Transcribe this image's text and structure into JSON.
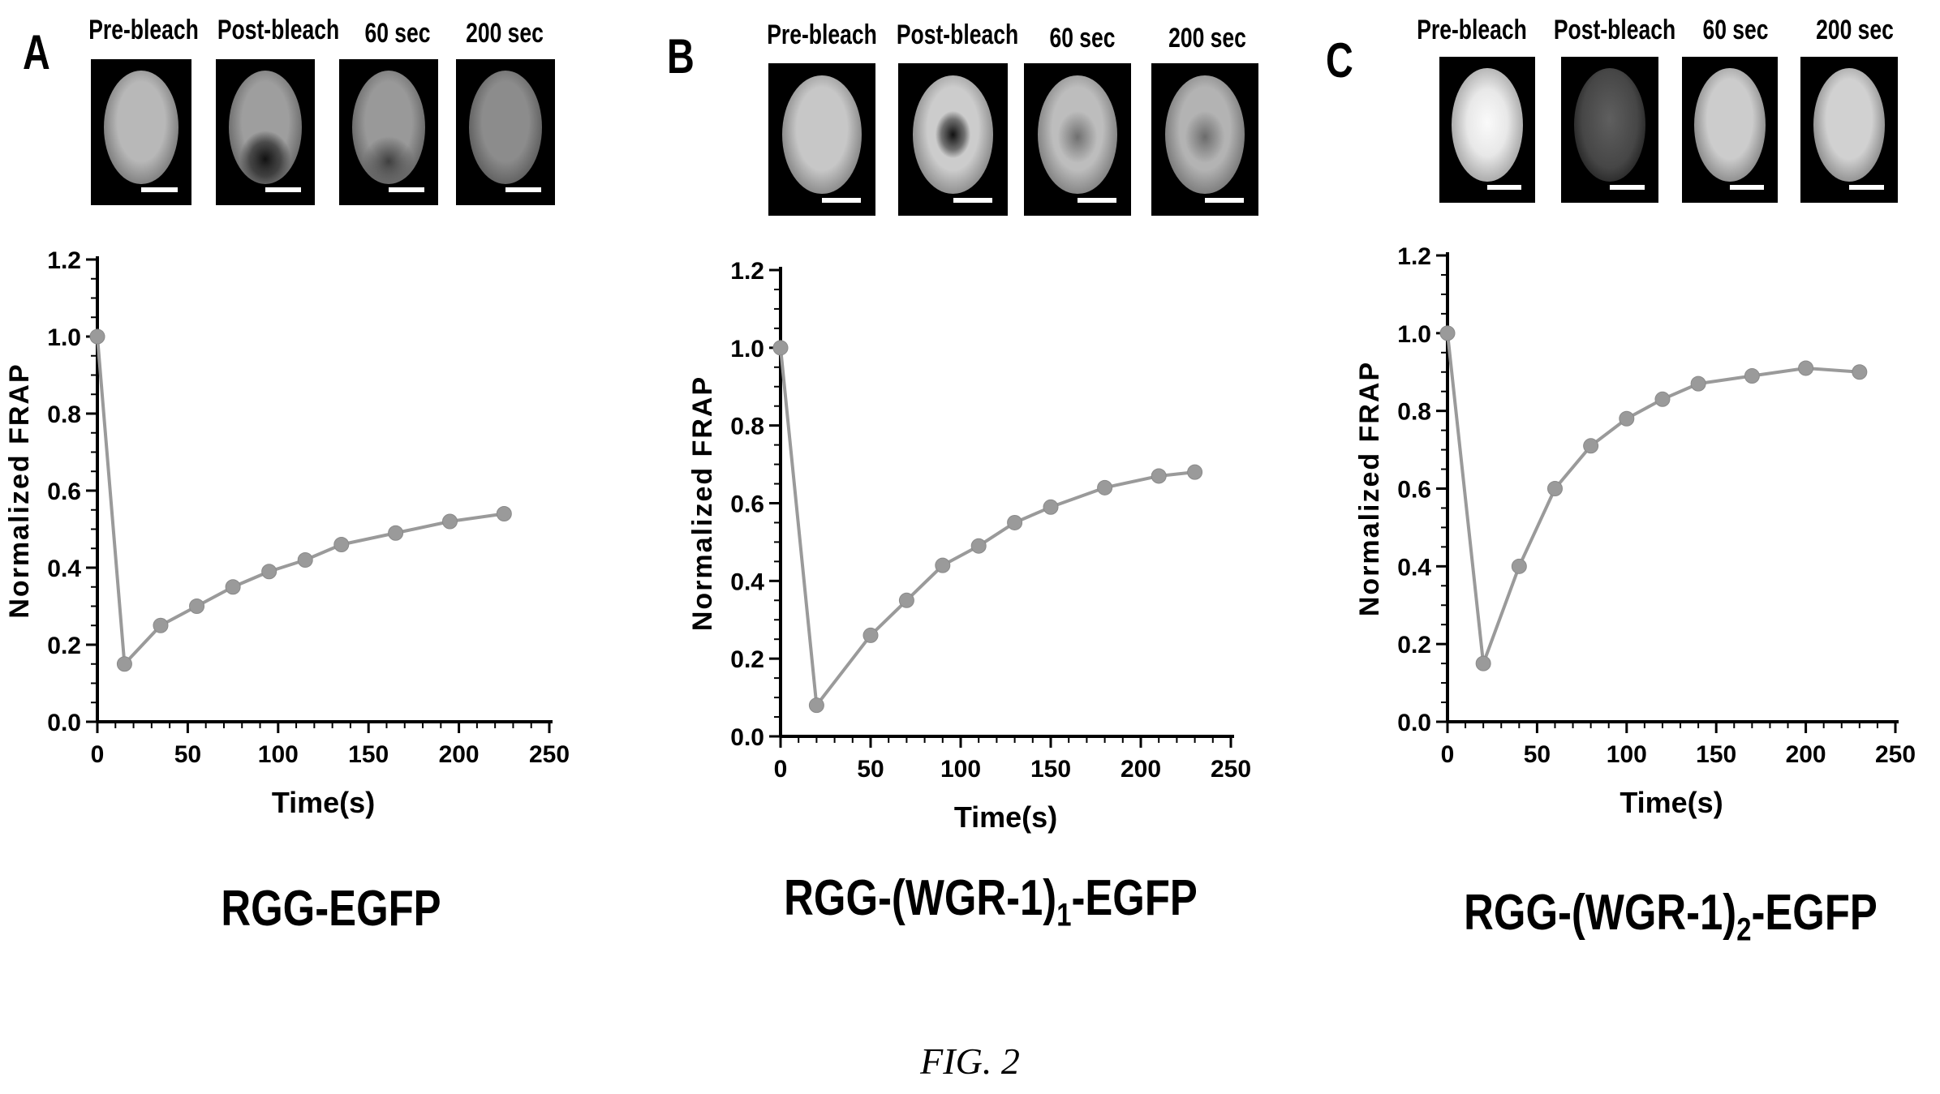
{
  "figure_caption": "FIG. 2",
  "image_labels": [
    "Pre-bleach",
    "Post-bleach",
    "60 sec",
    "200 sec"
  ],
  "panels": [
    {
      "letter": "A",
      "construct": {
        "main": "RGG-EGFP",
        "sub": "",
        "tail": ""
      },
      "micrographs": [
        {
          "label": "Pre-bleach",
          "state": "intact",
          "brightness": 0.72
        },
        {
          "label": "Post-bleach",
          "state": "bleached-bottom",
          "brightness": 0.62
        },
        {
          "label": "60 sec",
          "state": "recovering",
          "brightness": 0.6
        },
        {
          "label": "200 sec",
          "state": "recovered",
          "brightness": 0.55
        }
      ]
    },
    {
      "letter": "B",
      "construct": {
        "main": "RGG-(WGR-1)",
        "sub": "1",
        "tail": "-EGFP"
      },
      "micrographs": [
        {
          "label": "Pre-bleach",
          "state": "intact",
          "brightness": 0.78
        },
        {
          "label": "Post-bleach",
          "state": "bleached-center",
          "brightness": 0.8
        },
        {
          "label": "60 sec",
          "state": "recovering-center",
          "brightness": 0.74
        },
        {
          "label": "200 sec",
          "state": "recovered-center",
          "brightness": 0.7
        }
      ]
    },
    {
      "letter": "C",
      "construct": {
        "main": "RGG-(WGR-1)",
        "sub": "2",
        "tail": "-EGFP"
      },
      "micrographs": [
        {
          "label": "Pre-bleach",
          "state": "bright",
          "brightness": 0.95
        },
        {
          "label": "Post-bleach",
          "state": "dim",
          "brightness": 0.35
        },
        {
          "label": "60 sec",
          "state": "recovered",
          "brightness": 0.8
        },
        {
          "label": "200 sec",
          "state": "recovered",
          "brightness": 0.82
        }
      ]
    }
  ],
  "chart_data": [
    {
      "type": "line",
      "xlabel": "Time(s)",
      "ylabel": "Normalized FRAP",
      "xlim": [
        0,
        250
      ],
      "ylim": [
        0,
        1.2
      ],
      "xticks": [
        0,
        50,
        100,
        150,
        200,
        250
      ],
      "yticks": [
        0.0,
        0.2,
        0.4,
        0.6,
        0.8,
        1.0,
        1.2
      ],
      "grid": false,
      "series_color": "#9a9a9a",
      "x": [
        0,
        15,
        35,
        55,
        75,
        95,
        115,
        135,
        165,
        195,
        225
      ],
      "y": [
        1.0,
        0.15,
        0.25,
        0.3,
        0.35,
        0.39,
        0.42,
        0.46,
        0.49,
        0.52,
        0.54
      ]
    },
    {
      "type": "line",
      "xlabel": "Time(s)",
      "ylabel": "Normalized FRAP",
      "xlim": [
        0,
        250
      ],
      "ylim": [
        0,
        1.2
      ],
      "xticks": [
        0,
        50,
        100,
        150,
        200,
        250
      ],
      "yticks": [
        0.0,
        0.2,
        0.4,
        0.6,
        0.8,
        1.0,
        1.2
      ],
      "grid": false,
      "series_color": "#9a9a9a",
      "x": [
        0,
        20,
        50,
        70,
        90,
        110,
        130,
        150,
        180,
        210,
        230
      ],
      "y": [
        1.0,
        0.08,
        0.26,
        0.35,
        0.44,
        0.49,
        0.55,
        0.59,
        0.64,
        0.67,
        0.68
      ]
    },
    {
      "type": "line",
      "xlabel": "Time(s)",
      "ylabel": "Normalized FRAP",
      "xlim": [
        0,
        250
      ],
      "ylim": [
        0,
        1.2
      ],
      "xticks": [
        0,
        50,
        100,
        150,
        200,
        250
      ],
      "yticks": [
        0.0,
        0.2,
        0.4,
        0.6,
        0.8,
        1.0,
        1.2
      ],
      "grid": false,
      "series_color": "#9a9a9a",
      "x": [
        0,
        20,
        40,
        60,
        80,
        100,
        120,
        140,
        170,
        200,
        230
      ],
      "y": [
        1.0,
        0.15,
        0.4,
        0.6,
        0.71,
        0.78,
        0.83,
        0.87,
        0.89,
        0.91,
        0.9
      ]
    }
  ]
}
